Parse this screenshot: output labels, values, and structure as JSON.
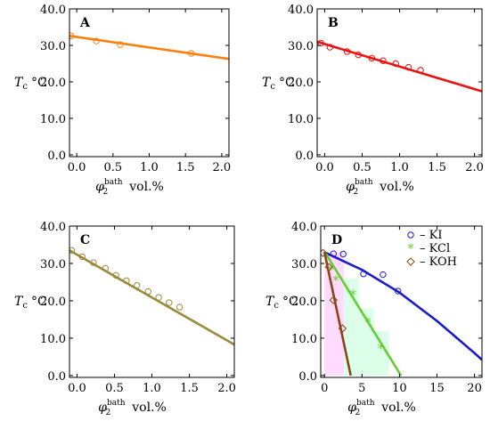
{
  "chart_data": [
    {
      "panel": "A",
      "type": "line",
      "xlabel": "vol.%",
      "xlabel_symbol": "φ",
      "xlabel_sub": "2",
      "xlabel_sup": "bath",
      "ylabel": "°C",
      "ylabel_symbol": "T",
      "ylabel_sub": "c",
      "xlim": [
        -0.1,
        2.1
      ],
      "ylim": [
        -0.5,
        40.0
      ],
      "xticks": [
        "0.0",
        "0.5",
        "1.0",
        "1.5",
        "2.0"
      ],
      "yticks": [
        "0.0",
        "10.0",
        "20.0",
        "30.0",
        "40.0"
      ],
      "series": [
        {
          "color": "#ff7f0e",
          "points": [
            [
              -0.08,
              32.6
            ],
            [
              0.27,
              31.2
            ],
            [
              0.6,
              30.2
            ],
            [
              1.58,
              27.8
            ]
          ],
          "fit": [
            [
              -0.1,
              32.6
            ],
            [
              2.1,
              26.3
            ]
          ]
        }
      ]
    },
    {
      "panel": "B",
      "type": "line",
      "xlabel": "vol.%",
      "xlabel_symbol": "φ",
      "xlabel_sub": "2",
      "xlabel_sup": "bath",
      "ylabel": "°C",
      "ylabel_symbol": "T",
      "ylabel_sub": "c",
      "xlim": [
        -0.1,
        2.1
      ],
      "ylim": [
        -0.5,
        40.0
      ],
      "xticks": [
        "0.0",
        "0.5",
        "1.0",
        "1.5",
        "2.0"
      ],
      "yticks": [
        "0.0",
        "10.0",
        "20.0",
        "30.0",
        "40.0"
      ],
      "series": [
        {
          "color": "#ee1111",
          "points": [
            [
              -0.05,
              30.6
            ],
            [
              0.07,
              29.5
            ],
            [
              0.3,
              28.3
            ],
            [
              0.45,
              27.4
            ],
            [
              0.63,
              26.5
            ],
            [
              0.78,
              25.8
            ],
            [
              0.95,
              25.0
            ],
            [
              1.12,
              24.0
            ],
            [
              1.28,
              23.2
            ]
          ],
          "fit": [
            [
              -0.1,
              31.0
            ],
            [
              2.1,
              17.4
            ]
          ]
        }
      ]
    },
    {
      "panel": "C",
      "type": "line",
      "xlabel": "vol.%",
      "xlabel_symbol": "φ",
      "xlabel_sub": "2",
      "xlabel_sup": "bath",
      "ylabel": "°C",
      "ylabel_symbol": "T",
      "ylabel_sub": "c",
      "xlim": [
        -0.1,
        2.1
      ],
      "ylim": [
        -0.5,
        40.0
      ],
      "xticks": [
        "0.0",
        "0.5",
        "1.0",
        "1.5",
        "2.0"
      ],
      "yticks": [
        "0.0",
        "10.0",
        "20.0",
        "30.0",
        "40.0"
      ],
      "series": [
        {
          "color": "#9c8a3c",
          "points": [
            [
              -0.07,
              33.5
            ],
            [
              0.07,
              31.8
            ],
            [
              0.22,
              30.2
            ],
            [
              0.38,
              28.7
            ],
            [
              0.52,
              26.8
            ],
            [
              0.66,
              25.4
            ],
            [
              0.8,
              24.1
            ],
            [
              0.95,
              22.5
            ],
            [
              1.09,
              20.9
            ],
            [
              1.23,
              19.5
            ],
            [
              1.37,
              18.3
            ]
          ],
          "fit": [
            [
              -0.1,
              33.5
            ],
            [
              2.1,
              8.3
            ]
          ]
        }
      ]
    },
    {
      "panel": "D",
      "type": "line",
      "xlabel": "vol.%",
      "xlabel_symbol": "φ",
      "xlabel_sub": "2",
      "xlabel_sup": "bath",
      "ylabel": "°C",
      "ylabel_symbol": "T",
      "ylabel_sub": "c",
      "xlim": [
        -0.5,
        21.0
      ],
      "ylim": [
        -0.5,
        40.0
      ],
      "xticks": [
        "0",
        "5",
        "10",
        "15",
        "20"
      ],
      "yticks": [
        "0.0",
        "10.0",
        "20.0",
        "30.0",
        "40.0"
      ],
      "legend_position": "top-right",
      "legend": [
        {
          "marker": "o",
          "label": "– KI",
          "color": "#1a1acc"
        },
        {
          "marker": "*",
          "label": "– KCl",
          "color": "#66cc33"
        },
        {
          "marker": "◇",
          "label": "– KOH",
          "color": "#8b4513"
        }
      ],
      "bands": [
        {
          "x": [
            0.0,
            2.6
          ],
          "y": [
            0.0,
            33.0
          ],
          "color": "#ffd8ff"
        },
        {
          "x": [
            2.6,
            4.6
          ],
          "y": [
            0.0,
            26.0
          ],
          "color": "#d8ffe8"
        },
        {
          "x": [
            4.6,
            6.6
          ],
          "y": [
            0.0,
            18.0
          ],
          "color": "#d8ffe8"
        },
        {
          "x": [
            6.6,
            8.6
          ],
          "y": [
            0.0,
            12.0
          ],
          "color": "#d8ffe8"
        }
      ],
      "series": [
        {
          "name": "KI",
          "color": "#1a1acc",
          "marker": "o",
          "points": [
            [
              1.2,
              32.6
            ],
            [
              2.5,
              32.5
            ],
            [
              5.2,
              27.2
            ],
            [
              7.8,
              27.0
            ],
            [
              9.8,
              22.6
            ]
          ],
          "fit": [
            [
              0.0,
              33.0
            ],
            [
              5.0,
              28.3
            ],
            [
              10.0,
              22.2
            ],
            [
              15.0,
              14.6
            ],
            [
              20.0,
              6.0
            ],
            [
              21.0,
              4.2
            ]
          ]
        },
        {
          "name": "KCl",
          "color": "#66cc33",
          "marker": "*",
          "points": [
            [
              0.8,
              28.2
            ],
            [
              1.5,
              25.5
            ],
            [
              3.8,
              21.6
            ],
            [
              5.8,
              14.3
            ],
            [
              7.5,
              7.2
            ]
          ],
          "fit": [
            [
              0.0,
              33.2
            ],
            [
              10.2,
              0.0
            ]
          ]
        },
        {
          "name": "KOH",
          "color": "#8b4513",
          "marker": "◇",
          "points": [
            [
              -0.2,
              32.8
            ],
            [
              0.6,
              29.0
            ],
            [
              1.2,
              20.2
            ],
            [
              2.4,
              12.6
            ]
          ],
          "fit": [
            [
              0.0,
              33.0
            ],
            [
              3.5,
              0.0
            ]
          ]
        }
      ]
    }
  ]
}
